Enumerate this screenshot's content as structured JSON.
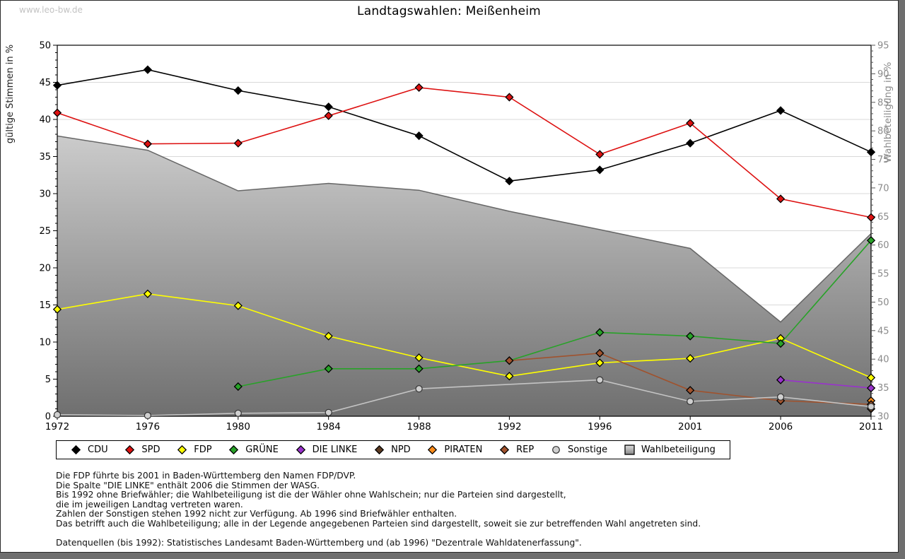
{
  "watermark": "www.leo-bw.de",
  "title": "Landtagswahlen: Meißenheim",
  "chart_data": {
    "type": "line",
    "categories": [
      "1972",
      "1976",
      "1980",
      "1984",
      "1988",
      "1992",
      "1996",
      "2001",
      "2006",
      "2011"
    ],
    "y_left": {
      "label": "gültige Stimmen in %",
      "min": 0,
      "max": 50,
      "tick_step": 5,
      "minor_step": 1
    },
    "y_right": {
      "label": "Wahlbeteiligung in %",
      "min": 30,
      "max": 95,
      "tick_step": 5,
      "minor_step": 1
    },
    "grid": true,
    "legend_position": "bottom",
    "series": [
      {
        "name": "CDU",
        "color": "#000000",
        "marker": "diamond",
        "values": [
          44.6,
          46.7,
          43.9,
          41.7,
          37.8,
          31.7,
          33.2,
          36.8,
          41.2,
          35.6
        ]
      },
      {
        "name": "SPD",
        "color": "#dd1111",
        "marker": "diamond",
        "values": [
          40.9,
          36.7,
          36.8,
          40.5,
          44.3,
          43.0,
          35.3,
          39.5,
          29.3,
          26.8
        ]
      },
      {
        "name": "FDP",
        "color": "#ffff00",
        "marker": "diamond",
        "values": [
          14.4,
          16.5,
          14.9,
          10.8,
          7.9,
          5.4,
          7.2,
          7.8,
          10.5,
          5.2
        ]
      },
      {
        "name": "GRÜNE",
        "color": "#28a228",
        "marker": "diamond",
        "values": [
          null,
          null,
          4.0,
          6.4,
          6.4,
          7.5,
          11.3,
          10.8,
          9.8,
          23.7
        ]
      },
      {
        "name": "DIE LINKE",
        "color": "#9932cc",
        "marker": "diamond",
        "values": [
          null,
          null,
          null,
          null,
          null,
          null,
          null,
          null,
          4.9,
          3.8
        ]
      },
      {
        "name": "NPD",
        "color": "#5c3a21",
        "marker": "diamond",
        "values": [
          null,
          null,
          null,
          null,
          null,
          null,
          null,
          null,
          null,
          1.0
        ]
      },
      {
        "name": "PIRATEN",
        "color": "#ff8c1a",
        "marker": "diamond",
        "values": [
          null,
          null,
          null,
          null,
          null,
          null,
          null,
          null,
          null,
          2.1
        ]
      },
      {
        "name": "REP",
        "color": "#a0522d",
        "marker": "diamond",
        "values": [
          null,
          null,
          null,
          null,
          null,
          7.5,
          8.5,
          3.5,
          2.1,
          1.6
        ]
      },
      {
        "name": "Sonstige",
        "color": "#cfcfcf",
        "marker": "circle",
        "values": [
          0.2,
          0.1,
          0.4,
          0.5,
          3.7,
          null,
          4.9,
          2.0,
          2.6,
          1.3
        ]
      }
    ],
    "turnout": {
      "name": "Wahlbeteiligung",
      "axis": "right",
      "type": "area",
      "values": [
        79.1,
        76.6,
        69.5,
        70.8,
        69.6,
        65.9,
        62.7,
        59.4,
        46.5,
        62.0
      ],
      "fill_top": "#e9e9e9",
      "fill_bottom": "#6f6f6f",
      "edge_color": "#666666"
    }
  },
  "style_colors": {
    "grid": "#d9d9d9",
    "frame": "#000000",
    "right_axis_text": "#8a8a8a",
    "left_axis_text": "#000000",
    "sonstige_line": "#c4c4c4"
  },
  "footnotes": [
    "Die FDP führte bis 2001 in Baden-Württemberg den Namen FDP/DVP.",
    "Die Spalte \"DIE LINKE\" enthält 2006 die Stimmen der WASG.",
    "Bis 1992 ohne Briefwähler; die Wahlbeteiligung ist die der Wähler ohne Wahlschein; nur die Parteien sind dargestellt,",
    "die im jeweiligen Landtag vertreten waren.",
    "Zahlen der Sonstigen stehen 1992 nicht zur Verfügung. Ab 1996 sind Briefwähler enthalten.",
    "Das betrifft auch die Wahlbeteiligung; alle in der Legende angegebenen Parteien sind dargestellt, soweit sie zur betreffenden Wahl angetreten sind.",
    "",
    "Datenquellen (bis 1992): Statistisches Landesamt Baden-Württemberg und (ab 1996) \"Dezentrale Wahldatenerfassung\"."
  ]
}
